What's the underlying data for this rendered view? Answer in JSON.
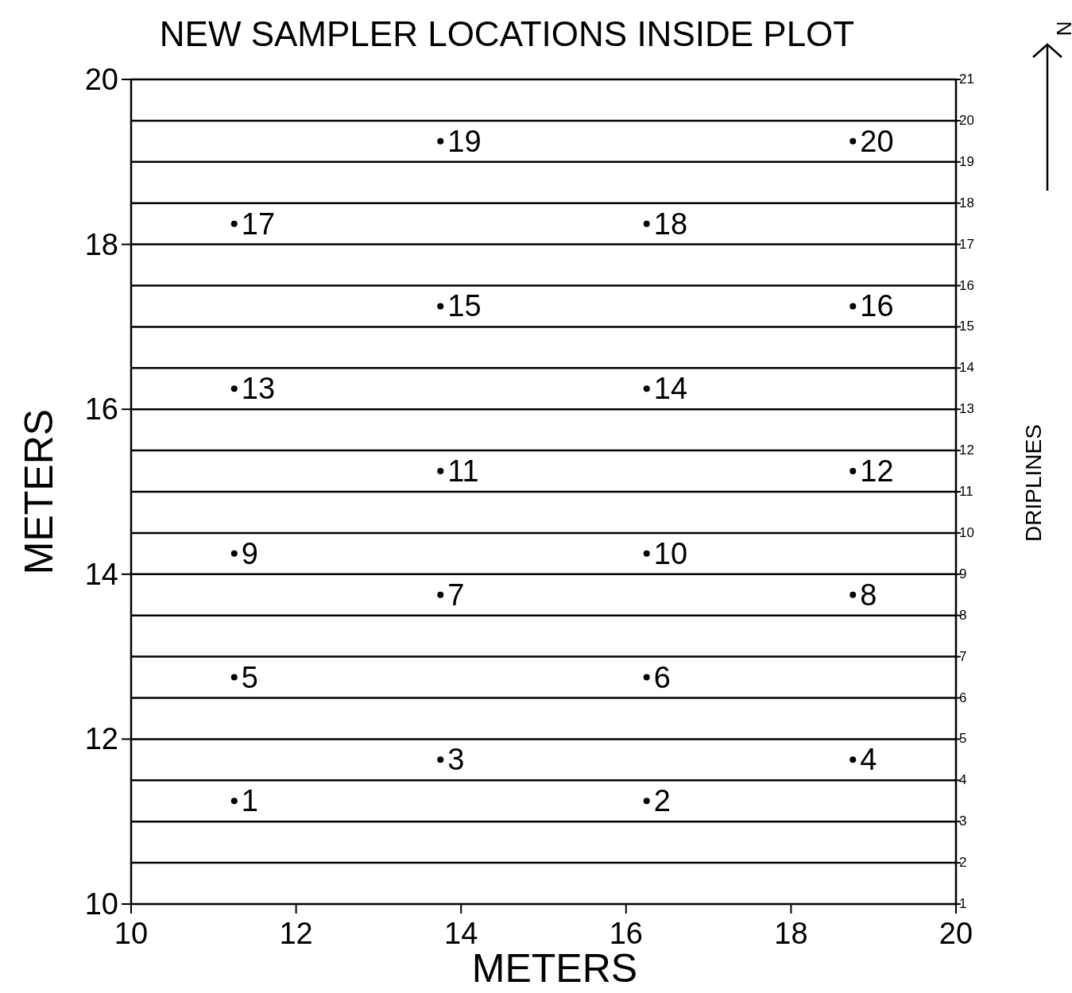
{
  "chart_data": {
    "type": "scatter",
    "title": "NEW SAMPLER LOCATIONS INSIDE PLOT",
    "xlabel": "METERS",
    "ylabel": "METERS",
    "y2label": "DRIPLINES",
    "x": [
      11.25,
      16.25,
      13.75,
      18.75,
      11.25,
      16.25,
      13.75,
      18.75,
      11.25,
      16.25,
      13.75,
      18.75,
      11.25,
      16.25,
      13.75,
      18.75,
      11.25,
      16.25,
      13.75,
      18.75
    ],
    "values": [
      11.25,
      11.25,
      11.75,
      11.75,
      12.75,
      12.75,
      13.75,
      13.75,
      14.25,
      14.25,
      15.25,
      15.25,
      16.25,
      16.25,
      17.25,
      17.25,
      18.25,
      18.25,
      19.25,
      19.25
    ],
    "color": "#000000",
    "marker": "circle",
    "xlim": [
      10,
      20
    ],
    "xticks": [
      10,
      12,
      14,
      16,
      18,
      20
    ],
    "ylim": [
      10,
      20
    ],
    "yticks": [
      10,
      12,
      14,
      16,
      18,
      20
    ],
    "y2lim": [
      1,
      21
    ],
    "y2ticks": [
      1,
      2,
      3,
      4,
      5,
      6,
      7,
      8,
      9,
      10,
      11,
      12,
      13,
      14,
      15,
      16,
      17,
      18,
      19,
      20,
      21
    ],
    "ref_lines": [
      {
        "axis": "y2",
        "value": 2
      },
      {
        "axis": "y2",
        "value": 3
      },
      {
        "axis": "y2",
        "value": 4
      },
      {
        "axis": "y2",
        "value": 5
      },
      {
        "axis": "y2",
        "value": 6
      },
      {
        "axis": "y2",
        "value": 7
      },
      {
        "axis": "y2",
        "value": 8
      },
      {
        "axis": "y2",
        "value": 9
      },
      {
        "axis": "y2",
        "value": 10
      },
      {
        "axis": "y2",
        "value": 11
      },
      {
        "axis": "y2",
        "value": 12
      },
      {
        "axis": "y2",
        "value": 13
      },
      {
        "axis": "y2",
        "value": 14
      },
      {
        "axis": "y2",
        "value": 15
      },
      {
        "axis": "y2",
        "value": 16
      },
      {
        "axis": "y2",
        "value": 17
      },
      {
        "axis": "y2",
        "value": 18
      },
      {
        "axis": "y2",
        "value": 19
      },
      {
        "axis": "y2",
        "value": 20
      }
    ],
    "annotations": [
      "N",
      {
        "text": "1",
        "x": 11.25,
        "y": 11.25
      },
      {
        "text": "2",
        "x": 16.25,
        "y": 11.25
      },
      {
        "text": "3",
        "x": 13.75,
        "y": 11.75
      },
      {
        "text": "4",
        "x": 18.75,
        "y": 11.75
      },
      {
        "text": "5",
        "x": 11.25,
        "y": 12.75
      },
      {
        "text": "6",
        "x": 16.25,
        "y": 12.75
      },
      {
        "text": "7",
        "x": 13.75,
        "y": 13.75
      },
      {
        "text": "8",
        "x": 18.75,
        "y": 13.75
      },
      {
        "text": "9",
        "x": 11.25,
        "y": 14.25
      },
      {
        "text": "10",
        "x": 16.25,
        "y": 14.25
      },
      {
        "text": "11",
        "x": 13.75,
        "y": 15.25
      },
      {
        "text": "12",
        "x": 18.75,
        "y": 15.25
      },
      {
        "text": "13",
        "x": 11.25,
        "y": 16.25
      },
      {
        "text": "14",
        "x": 16.25,
        "y": 16.25
      },
      {
        "text": "15",
        "x": 13.75,
        "y": 17.25
      },
      {
        "text": "16",
        "x": 18.75,
        "y": 17.25
      },
      {
        "text": "17",
        "x": 11.25,
        "y": 18.25
      },
      {
        "text": "18",
        "x": 16.25,
        "y": 18.25
      },
      {
        "text": "19",
        "x": 13.75,
        "y": 19.25
      },
      {
        "text": "20",
        "x": 18.75,
        "y": 19.25
      }
    ],
    "grid": false
  }
}
